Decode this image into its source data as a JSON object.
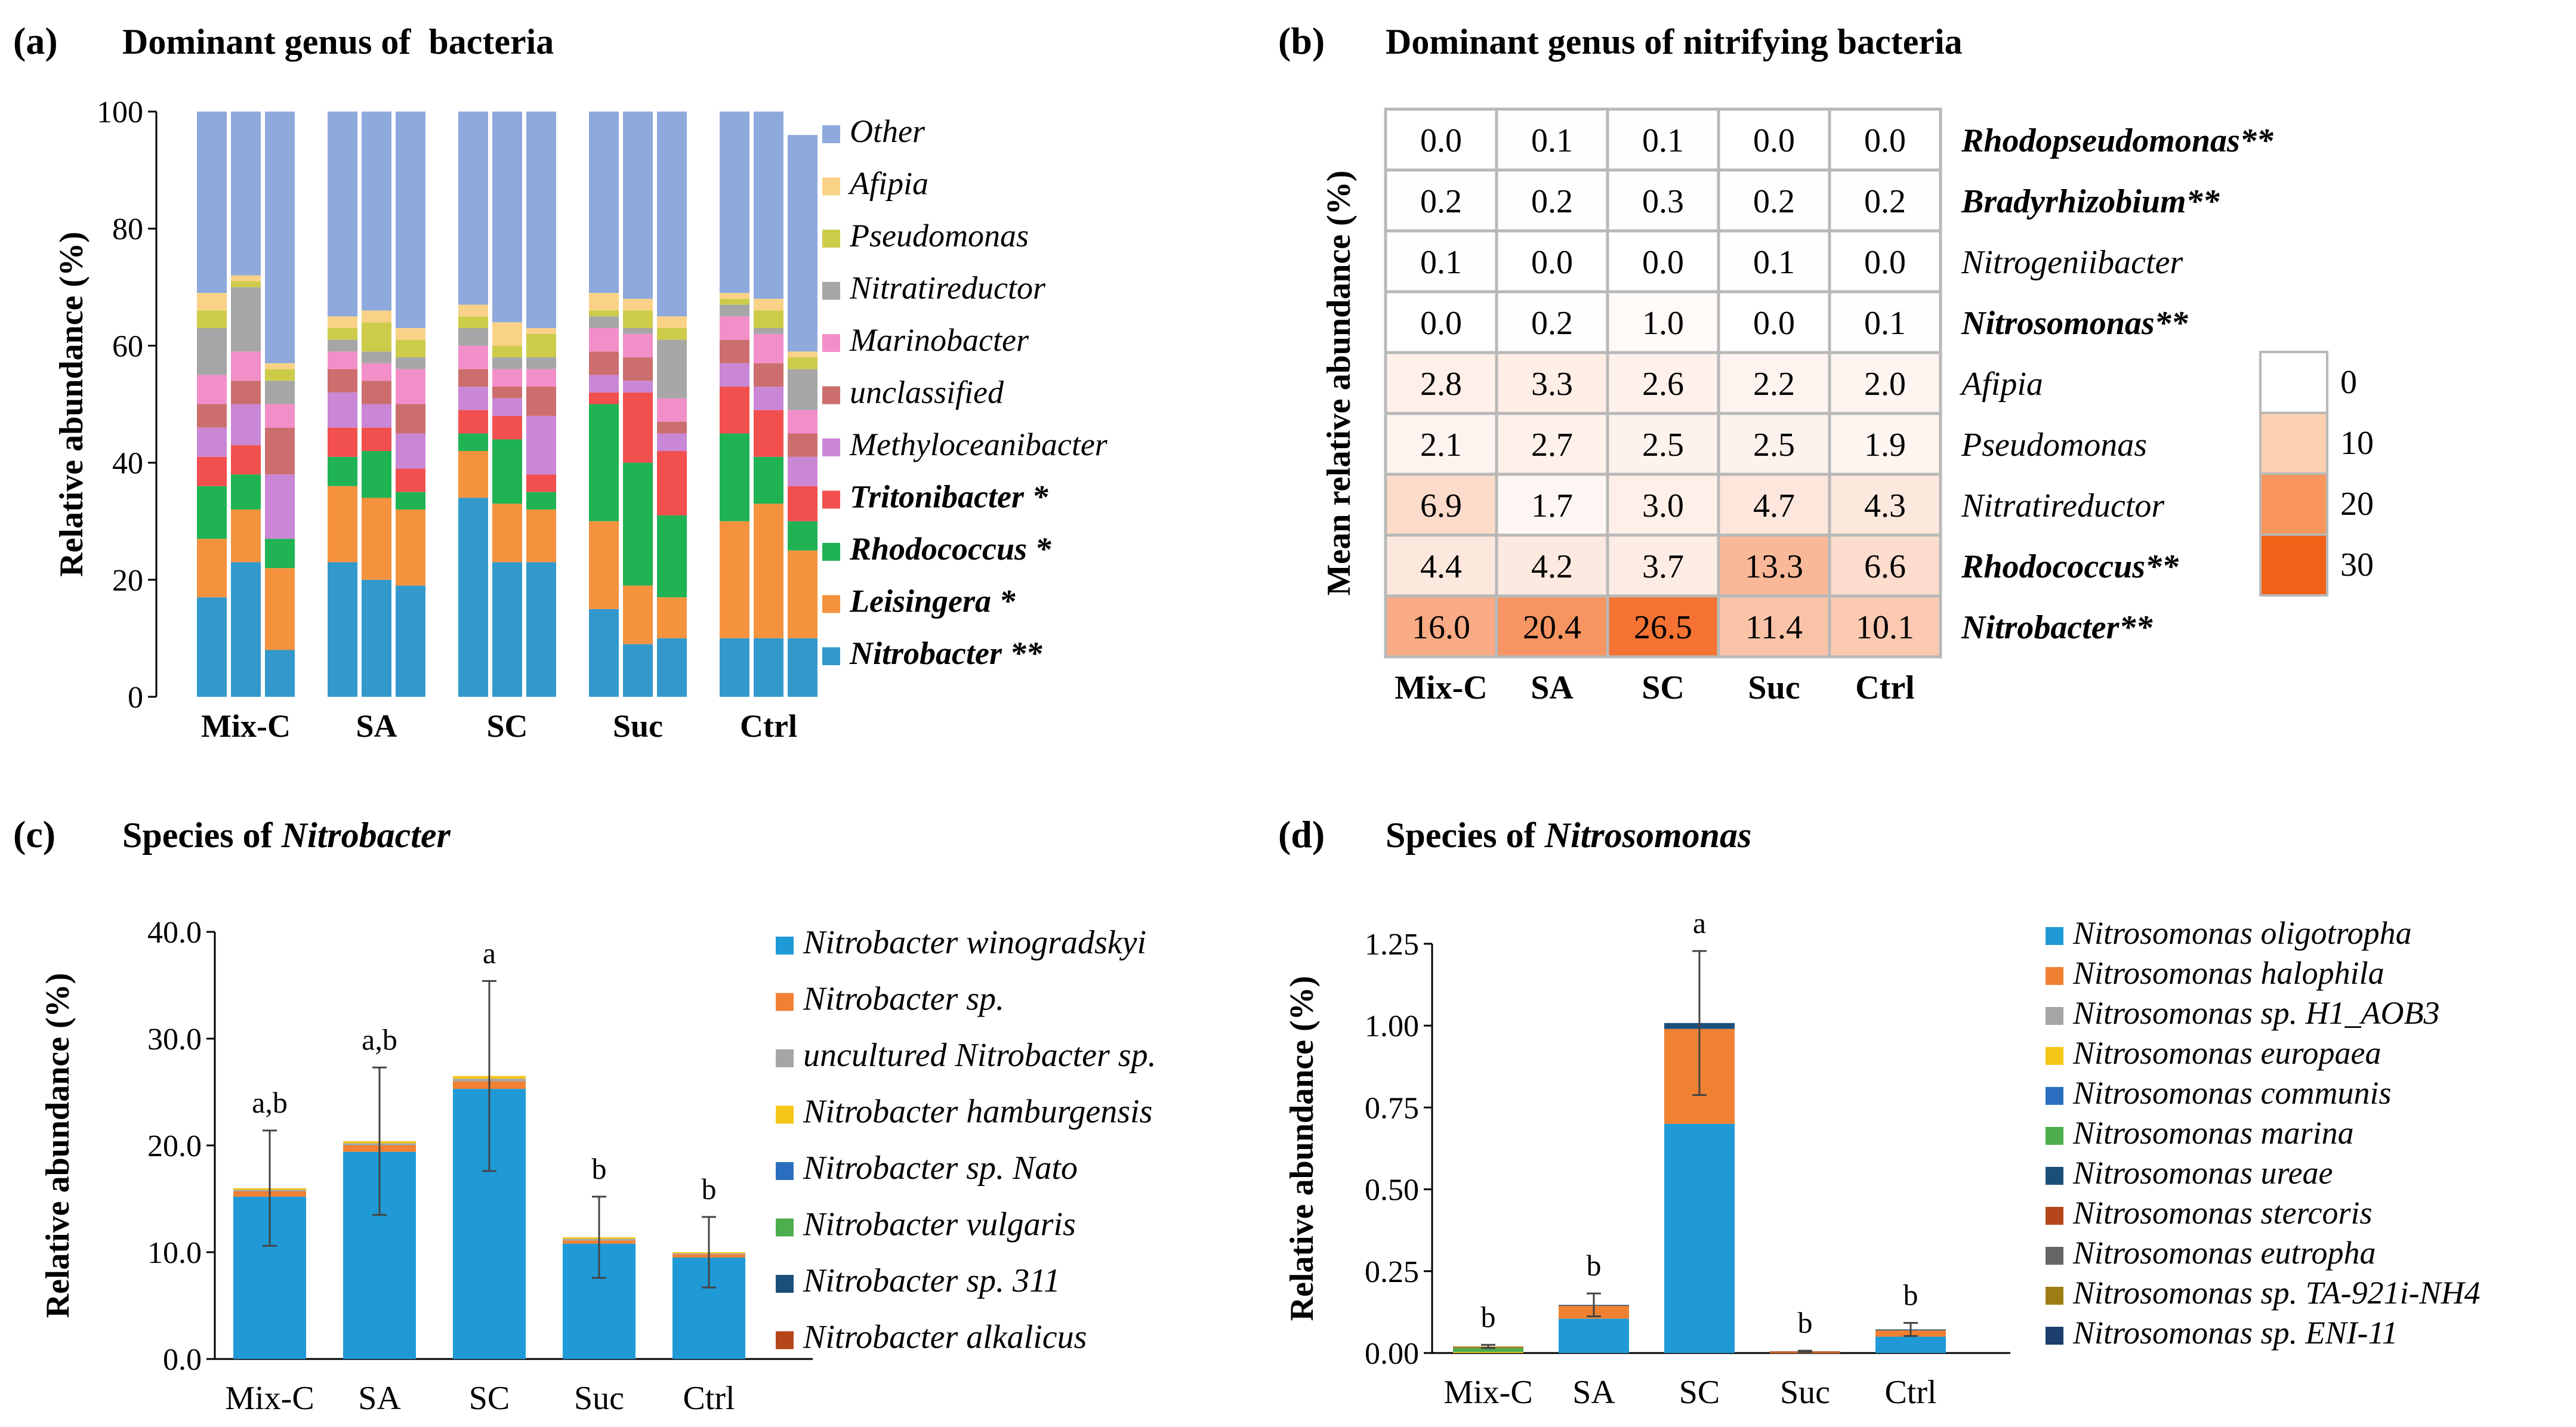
{
  "panels": {
    "a": {
      "letter": "(a)",
      "title": "Dominant genus of  bacteria"
    },
    "b": {
      "letter": "(b)",
      "title": "Dominant genus of nitrifying bacteria"
    },
    "c": {
      "letter": "(c)",
      "title_prefix": "Species of ",
      "title_italic": "Nitrobacter"
    },
    "d": {
      "letter": "(d)",
      "title_prefix": "Species of ",
      "title_italic": "Nitrosomonas"
    }
  },
  "chart_data": [
    {
      "id": "a",
      "type": "bar",
      "stacked": true,
      "ylabel": "Relative abundance (%)",
      "ylim": [
        0,
        100
      ],
      "yticks": [
        "0",
        "20",
        "40",
        "60",
        "80",
        "100"
      ],
      "groups": [
        "Mix-C",
        "SA",
        "SC",
        "Suc",
        "Ctrl"
      ],
      "bars_per_group": 3,
      "series": [
        {
          "name": "Nitrobacter **",
          "bold": true,
          "color": "#3399cc",
          "values": [
            17,
            23,
            8,
            23,
            20,
            19,
            34,
            23,
            23,
            15,
            9,
            10,
            10,
            10,
            10
          ]
        },
        {
          "name": "Leisingera *",
          "bold": true,
          "color": "#f5923e",
          "values": [
            10,
            9,
            14,
            13,
            14,
            13,
            8,
            10,
            9,
            15,
            10,
            7,
            20,
            23,
            15
          ]
        },
        {
          "name": "Rhodococcus *",
          "bold": true,
          "color": "#1fb354",
          "values": [
            9,
            6,
            5,
            5,
            8,
            3,
            3,
            11,
            3,
            20,
            21,
            14,
            15,
            8,
            5
          ]
        },
        {
          "name": "Tritonibacter *",
          "bold": true,
          "color": "#f24f4f",
          "values": [
            5,
            5,
            0,
            5,
            4,
            4,
            4,
            4,
            3,
            2,
            12,
            11,
            8,
            8,
            6
          ]
        },
        {
          "name": "Methyloceanibacter",
          "bold": false,
          "color": "#c987d6",
          "values": [
            5,
            7,
            11,
            6,
            4,
            6,
            4,
            3,
            10,
            3,
            2,
            3,
            4,
            4,
            5
          ]
        },
        {
          "name": "unclassified",
          "bold": false,
          "color": "#cc6e6e",
          "values": [
            4,
            4,
            8,
            4,
            4,
            5,
            3,
            2,
            5,
            4,
            4,
            2,
            4,
            4,
            4
          ]
        },
        {
          "name": "Marinobacter",
          "bold": false,
          "color": "#f28fc9",
          "values": [
            5,
            5,
            4,
            3,
            3,
            6,
            4,
            3,
            3,
            4,
            4,
            4,
            4,
            5,
            4
          ]
        },
        {
          "name": "Nitratireductor",
          "bold": false,
          "color": "#a6a6a6",
          "values": [
            8,
            11,
            4,
            2,
            2,
            2,
            3,
            2,
            2,
            2,
            1,
            10,
            2,
            1,
            7
          ]
        },
        {
          "name": "Pseudomonas",
          "bold": false,
          "color": "#cccc4a",
          "values": [
            3,
            1,
            2,
            2,
            5,
            3,
            2,
            2,
            4,
            1,
            3,
            2,
            1,
            3,
            2
          ]
        },
        {
          "name": "Afipia",
          "bold": false,
          "color": "#fad287",
          "values": [
            3,
            1,
            1,
            2,
            2,
            2,
            2,
            4,
            1,
            3,
            2,
            2,
            1,
            2,
            1
          ]
        },
        {
          "name": "Other",
          "bold": false,
          "color": "#8ea9dc",
          "values": [
            31,
            28,
            43,
            35,
            34,
            37,
            33,
            36,
            37,
            31,
            32,
            35,
            31,
            32,
            37
          ]
        }
      ]
    },
    {
      "id": "b",
      "type": "heatmap",
      "ylabel": "Mean relative abundance (%)",
      "columns": [
        "Mix-C",
        "SA",
        "SC",
        "Suc",
        "Ctrl"
      ],
      "rows": [
        {
          "name": "Rhodopseudomonas**",
          "bold": true,
          "values": [
            "0.0",
            "0.1",
            "0.1",
            "0.0",
            "0.0"
          ]
        },
        {
          "name": "Bradyrhizobium**",
          "bold": true,
          "values": [
            "0.2",
            "0.2",
            "0.3",
            "0.2",
            "0.2"
          ]
        },
        {
          "name": "Nitrogeniibacter",
          "bold": false,
          "values": [
            "0.1",
            "0.0",
            "0.0",
            "0.1",
            "0.0"
          ]
        },
        {
          "name": "Nitrosomonas**",
          "bold": true,
          "values": [
            "0.0",
            "0.2",
            "1.0",
            "0.0",
            "0.1"
          ]
        },
        {
          "name": "Afipia",
          "bold": false,
          "values": [
            "2.8",
            "3.3",
            "2.6",
            "2.2",
            "2.0"
          ]
        },
        {
          "name": "Pseudomonas",
          "bold": false,
          "values": [
            "2.1",
            "2.7",
            "2.5",
            "2.5",
            "1.9"
          ]
        },
        {
          "name": "Nitratireductor",
          "bold": false,
          "values": [
            "6.9",
            "1.7",
            "3.0",
            "4.7",
            "4.3"
          ]
        },
        {
          "name": "Rhodococcus**",
          "bold": true,
          "values": [
            "4.4",
            "4.2",
            "3.7",
            "13.3",
            "6.6"
          ]
        },
        {
          "name": "Nitrobacter**",
          "bold": true,
          "values": [
            "16.0",
            "20.4",
            "26.5",
            "11.4",
            "10.1"
          ]
        }
      ],
      "color_scale": {
        "min": 0,
        "max": 30,
        "low": "#ffffff",
        "high": "#f26118"
      },
      "legend": [
        "0",
        "10",
        "20",
        "30"
      ],
      "legend_colors": [
        "#ffffff",
        "#fbd0b2",
        "#f7955c",
        "#f26118"
      ]
    },
    {
      "id": "c",
      "type": "bar",
      "stacked": true,
      "ylabel": "Relative abundance (%)",
      "ylim": [
        0,
        40
      ],
      "yticks": [
        "0.0",
        "10.0",
        "20.0",
        "30.0",
        "40.0"
      ],
      "categories": [
        "Mix-C",
        "SA",
        "SC",
        "Suc",
        "Ctrl"
      ],
      "series": [
        {
          "name": "Nitrobacter winogradskyi",
          "color": "#1f9ad6",
          "values": [
            15.2,
            19.4,
            25.3,
            10.8,
            9.5
          ]
        },
        {
          "name": "Nitrobacter sp.",
          "color": "#f08133",
          "values": [
            0.5,
            0.6,
            0.7,
            0.3,
            0.3
          ]
        },
        {
          "name": "uncultured Nitrobacter sp.",
          "color": "#a5a5a5",
          "values": [
            0.15,
            0.2,
            0.25,
            0.15,
            0.1
          ]
        },
        {
          "name": "Nitrobacter hamburgensis",
          "color": "#f5c518",
          "values": [
            0.15,
            0.2,
            0.25,
            0.15,
            0.1
          ]
        },
        {
          "name": "Nitrobacter sp. Nato",
          "color": "#2a6fbf",
          "values": [
            0,
            0,
            0,
            0,
            0
          ]
        },
        {
          "name": "Nitrobacter vulgaris",
          "color": "#4cae4c",
          "values": [
            0,
            0,
            0,
            0,
            0
          ]
        },
        {
          "name": "Nitrobacter sp. 311",
          "color": "#1b4f7a",
          "values": [
            0,
            0,
            0,
            0,
            0
          ]
        },
        {
          "name": "Nitrobacter alkalicus",
          "color": "#b5461a",
          "values": [
            0,
            0,
            0,
            0,
            0
          ]
        }
      ],
      "errors": [
        5.4,
        6.9,
        8.9,
        3.8,
        3.3
      ],
      "sig_letters": [
        "a,b",
        "a,b",
        "a",
        "b",
        "b"
      ]
    },
    {
      "id": "d",
      "type": "bar",
      "stacked": true,
      "ylabel": "Relative abundance (%)",
      "ylim": [
        0,
        1.25
      ],
      "yticks": [
        "0.00",
        "0.25",
        "0.50",
        "0.75",
        "1.00",
        "1.25"
      ],
      "categories": [
        "Mix-C",
        "SA",
        "SC",
        "Suc",
        "Ctrl"
      ],
      "series": [
        {
          "name": "Nitrosomonas oligotropha",
          "color": "#1f9ad6",
          "values": [
            0.0,
            0.105,
            0.7,
            0.0,
            0.05
          ]
        },
        {
          "name": "Nitrosomonas halophila",
          "color": "#f08133",
          "values": [
            0.0,
            0.04,
            0.29,
            0.002,
            0.02
          ]
        },
        {
          "name": "Nitrosomonas sp. H1_AOB3",
          "color": "#a5a5a5",
          "values": [
            0.0,
            0.0,
            0.0,
            0.0,
            0.0
          ]
        },
        {
          "name": "Nitrosomonas europaea",
          "color": "#f5c518",
          "values": [
            0.003,
            0.0,
            0.0,
            0.0,
            0.0
          ]
        },
        {
          "name": "Nitrosomonas communis",
          "color": "#2a6fbf",
          "values": [
            0.0,
            0.0,
            0.0,
            0.0,
            0.0
          ]
        },
        {
          "name": "Nitrosomonas marina",
          "color": "#4cae4c",
          "values": [
            0.012,
            0.0,
            0.0,
            0.0,
            0.0
          ]
        },
        {
          "name": "Nitrosomonas ureae",
          "color": "#1b4f7a",
          "values": [
            0.0,
            0.002,
            0.018,
            0.0,
            0.002
          ]
        },
        {
          "name": "Nitrosomonas stercoris",
          "color": "#b5461a",
          "values": [
            0.0,
            0.0,
            0.0,
            0.003,
            0.0
          ]
        },
        {
          "name": "Nitrosomonas eutropha",
          "color": "#666666",
          "values": [
            0.0,
            0.0,
            0.0,
            0.0,
            0.0
          ]
        },
        {
          "name": "Nitrosomonas sp. TA-921i-NH4",
          "color": "#9e7d14",
          "values": [
            0.005,
            0.0,
            0.0,
            0.0,
            0.0
          ]
        },
        {
          "name": "Nitrosomonas sp. ENI-11",
          "color": "#1c3d6e",
          "values": [
            0.0,
            0.0,
            0.0,
            0.0,
            0.0
          ]
        }
      ],
      "errors": [
        0.005,
        0.035,
        0.22,
        0.002,
        0.02
      ],
      "sig_letters": [
        "b",
        "b",
        "a",
        "b",
        "b"
      ]
    }
  ]
}
